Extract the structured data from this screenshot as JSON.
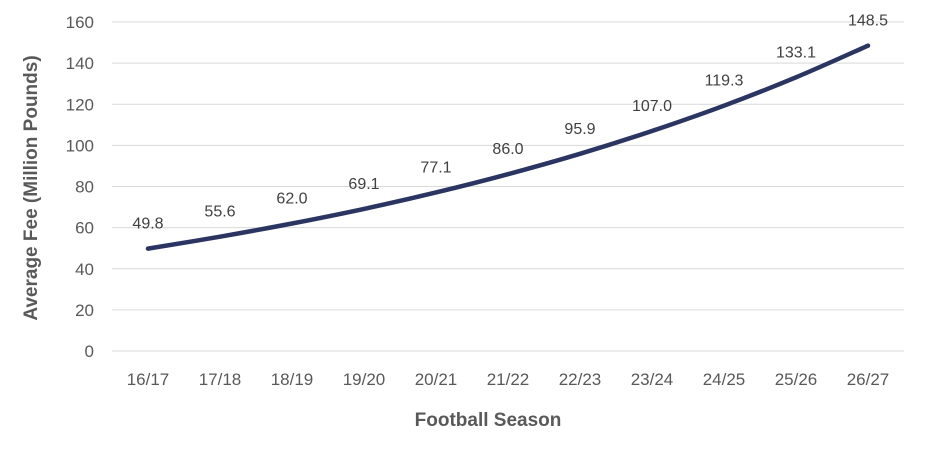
{
  "chart_data": {
    "type": "line",
    "title": "",
    "xlabel": "Football Season",
    "ylabel": "Average Fee (Million Pounds)",
    "categories": [
      "16/17",
      "17/18",
      "18/19",
      "19/20",
      "20/21",
      "21/22",
      "22/23",
      "23/24",
      "24/25",
      "25/26",
      "26/27"
    ],
    "series": [
      {
        "values": [
          49.8,
          55.6,
          62.0,
          69.1,
          77.1,
          86.0,
          95.9,
          107.0,
          119.3,
          133.1,
          148.5
        ],
        "labels": [
          "49.8",
          "55.6",
          "62.0",
          "69.1",
          "77.1",
          "86.0",
          "95.9",
          "107.0",
          "119.3",
          "133.1",
          "148.5"
        ],
        "color": "#2b3561"
      }
    ],
    "ylim": [
      0,
      160
    ],
    "yticks": [
      "0",
      "20",
      "40",
      "60",
      "80",
      "100",
      "120",
      "140",
      "160"
    ],
    "grid": true,
    "legend": "none"
  }
}
